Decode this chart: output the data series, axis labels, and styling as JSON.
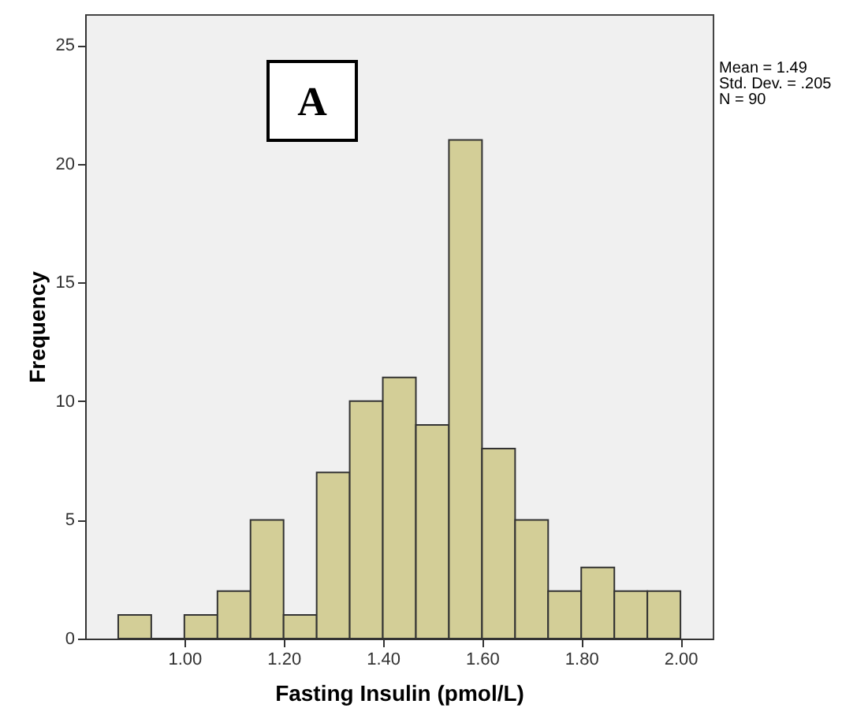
{
  "chart_data": {
    "type": "histogram",
    "xlabel": "Fasting Insulin (pmol/L)",
    "ylabel": "Frequency",
    "bins": [
      0.8667,
      0.9333,
      1.0,
      1.0667,
      1.1333,
      1.2,
      1.2667,
      1.3333,
      1.4,
      1.4667,
      1.5333,
      1.6,
      1.6667,
      1.7333,
      1.8,
      1.8667,
      1.9333,
      2.0
    ],
    "values": [
      1,
      0,
      1,
      2,
      5,
      1,
      7,
      10,
      11,
      9,
      21,
      8,
      5,
      2,
      3,
      2,
      2
    ],
    "color": "#d3ce97",
    "xlim": [
      0.8,
      2.065
    ],
    "ylim": [
      0,
      26.3
    ],
    "xticks": [
      {
        "value": 1.0,
        "label": "1.00"
      },
      {
        "value": 1.2,
        "label": "1.20"
      },
      {
        "value": 1.4,
        "label": "1.40"
      },
      {
        "value": 1.6,
        "label": "1.60"
      },
      {
        "value": 1.8,
        "label": "1.80"
      },
      {
        "value": 2.0,
        "label": "2.00"
      }
    ],
    "yticks": [
      0,
      5,
      10,
      15,
      20,
      25
    ],
    "grid": false,
    "annotations": [
      "A",
      "Mean = 1.49",
      "Std. Dev. = .205",
      "N = 90"
    ]
  }
}
